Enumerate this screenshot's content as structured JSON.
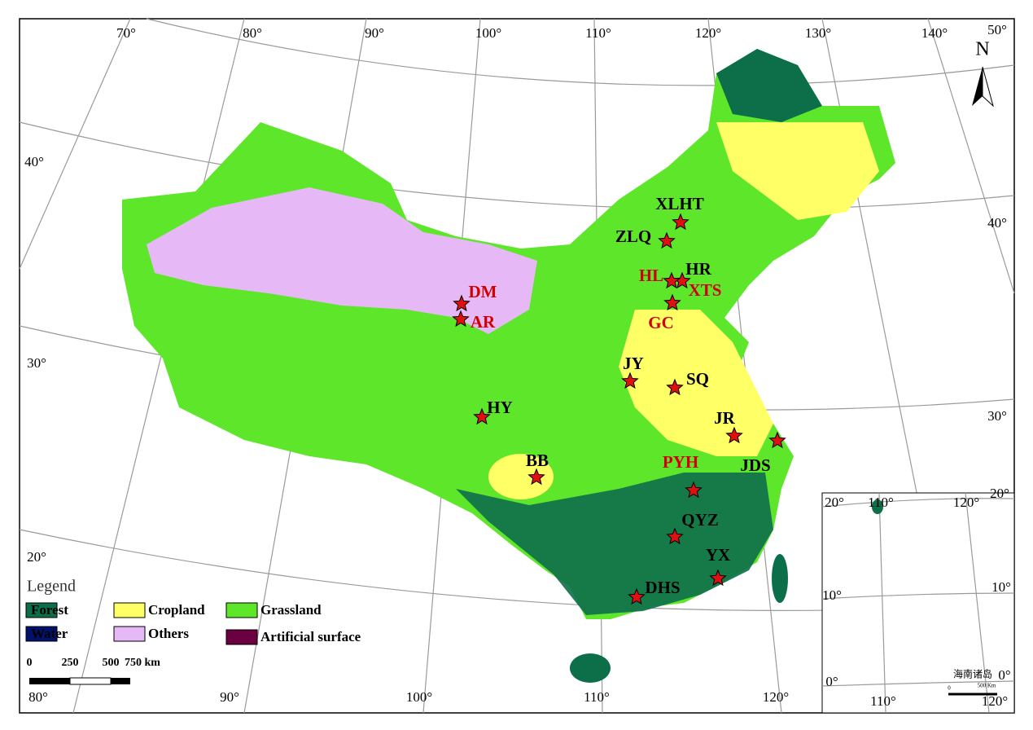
{
  "graticule": {
    "top": [
      "70°",
      "80°",
      "90°",
      "100°",
      "110°",
      "120°",
      "130°",
      "140°",
      "50°"
    ],
    "left": [
      "40°",
      "30°",
      "20°"
    ],
    "right": [
      "40°",
      "30°",
      "20°"
    ],
    "bottom": [
      "80°",
      "90°",
      "100°",
      "110°",
      "120°"
    ]
  },
  "north": "N",
  "stations": [
    {
      "label": "XLHT",
      "color": "#000000"
    },
    {
      "label": "ZLQ",
      "color": "#000000"
    },
    {
      "label": "HR",
      "color": "#000000"
    },
    {
      "label": "HL",
      "color": "#d00000"
    },
    {
      "label": "XTS",
      "color": "#d00000"
    },
    {
      "label": "GC",
      "color": "#d00000"
    },
    {
      "label": "DM",
      "color": "#d00000"
    },
    {
      "label": "AR",
      "color": "#d00000"
    },
    {
      "label": "JY",
      "color": "#000000"
    },
    {
      "label": "SQ",
      "color": "#000000"
    },
    {
      "label": "HY",
      "color": "#000000"
    },
    {
      "label": "JR",
      "color": "#000000"
    },
    {
      "label": "JDS",
      "color": "#000000"
    },
    {
      "label": "BB",
      "color": "#000000"
    },
    {
      "label": "PYH",
      "color": "#d00000"
    },
    {
      "label": "QYZ",
      "color": "#000000"
    },
    {
      "label": "YX",
      "color": "#000000"
    },
    {
      "label": "DHS",
      "color": "#000000"
    }
  ],
  "legend": {
    "title": "Legend",
    "items": [
      {
        "label": "Forest",
        "color": "#0d6e4a"
      },
      {
        "label": "Cropland",
        "color": "#ffff66"
      },
      {
        "label": "Grassland",
        "color": "#5ee62b"
      },
      {
        "label": "Water",
        "color": "#00126e"
      },
      {
        "label": "Others",
        "color": "#e6b8f5"
      },
      {
        "label": "Artificial surface",
        "color": "#6b0040"
      }
    ]
  },
  "scale_bar": {
    "labels": [
      "0",
      "250",
      "500",
      "750 km"
    ]
  },
  "inset": {
    "title": "海南诸岛",
    "labels": [
      "20°",
      "110°",
      "120°",
      "10°",
      "10°",
      "0°",
      "0°",
      "110°",
      "120°"
    ],
    "scale": [
      "0",
      "500 Km"
    ]
  }
}
